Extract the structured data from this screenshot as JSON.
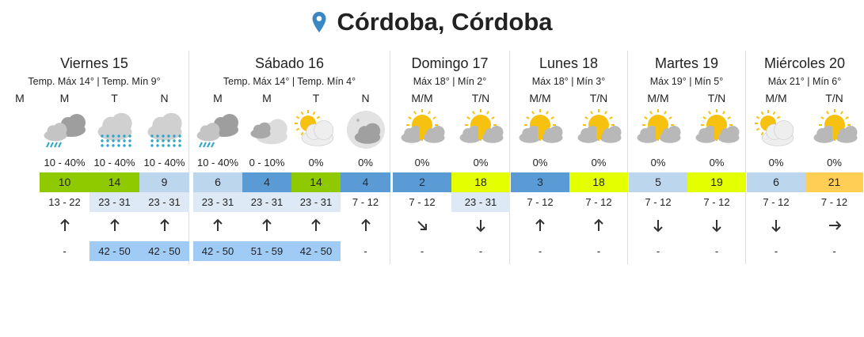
{
  "location": {
    "title": "Córdoba, Córdoba",
    "icon": "map-pin-icon",
    "pin_color": "#3b87c4"
  },
  "colors": {
    "green": "#8fca00",
    "lightblue": "#bcd6ee",
    "blue": "#5b9bd5",
    "lime": "#e4ff00",
    "orange": "#ffcf55",
    "wind_hl": "#dde9f5",
    "gust_hl": "#9fcbf5"
  },
  "days": [
    {
      "name": "Viernes 15",
      "sub": "Temp. Máx 14° | Temp. Mín 9°",
      "cols": [
        {
          "label": "M"
        },
        {
          "label": "M",
          "icon": "storm-cloud-icon",
          "prec": "10 - 40%",
          "temp": "10",
          "tc": "green",
          "wind": "13 - 22",
          "wh": false,
          "dir": "n",
          "gust": "-",
          "gh": false
        },
        {
          "label": "T",
          "icon": "snow-rain-icon",
          "prec": "10 - 40%",
          "temp": "14",
          "tc": "green",
          "wind": "23 - 31",
          "wh": true,
          "dir": "n",
          "gust": "42 - 50",
          "gh": true
        },
        {
          "label": "N",
          "icon": "snow-rain-icon",
          "prec": "10 - 40%",
          "temp": "9",
          "tc": "lightblue",
          "wind": "23 - 31",
          "wh": true,
          "dir": "n",
          "gust": "42 - 50",
          "gh": true
        }
      ]
    },
    {
      "name": "Sábado 16",
      "sub": "Temp. Máx 14° | Temp. Mín 4°",
      "cols": [
        {
          "label": "M",
          "icon": "storm-cloud-icon",
          "prec": "10 - 40%",
          "temp": "6",
          "tc": "lightblue",
          "wind": "23 - 31",
          "wh": true,
          "dir": "n",
          "gust": "42 - 50",
          "gh": true
        },
        {
          "label": "M",
          "icon": "cloudy-icon",
          "prec": "0 - 10%",
          "temp": "4",
          "tc": "blue",
          "wind": "23 - 31",
          "wh": true,
          "dir": "n",
          "gust": "51 - 59",
          "gh": true
        },
        {
          "label": "T",
          "icon": "partly-cloudy-icon",
          "prec": "0%",
          "temp": "14",
          "tc": "green",
          "wind": "23 - 31",
          "wh": true,
          "dir": "n",
          "gust": "42 - 50",
          "gh": true
        },
        {
          "label": "N",
          "icon": "night-cloudy-icon",
          "prec": "0%",
          "temp": "4",
          "tc": "blue",
          "wind": "7 - 12",
          "wh": false,
          "dir": "n",
          "gust": "-",
          "gh": false
        }
      ]
    },
    {
      "name": "Domingo 17",
      "sub": "Máx 18° | Mín 2°",
      "cols": [
        {
          "label": "M/M",
          "icon": "sun-cloud-icon",
          "prec": "0%",
          "temp": "2",
          "tc": "blue",
          "wind": "7 - 12",
          "wh": false,
          "dir": "se",
          "gust": "-",
          "gh": false
        },
        {
          "label": "T/N",
          "icon": "sun-cloud-icon",
          "prec": "0%",
          "temp": "18",
          "tc": "lime",
          "wind": "23 - 31",
          "wh": true,
          "dir": "s",
          "gust": "-",
          "gh": false
        }
      ]
    },
    {
      "name": "Lunes 18",
      "sub": "Máx 18° | Mín 3°",
      "cols": [
        {
          "label": "M/M",
          "icon": "sun-cloud-icon",
          "prec": "0%",
          "temp": "3",
          "tc": "blue",
          "wind": "7 - 12",
          "wh": false,
          "dir": "n",
          "gust": "-",
          "gh": false
        },
        {
          "label": "T/N",
          "icon": "sun-cloud-icon",
          "prec": "0%",
          "temp": "18",
          "tc": "lime",
          "wind": "7 - 12",
          "wh": false,
          "dir": "n",
          "gust": "-",
          "gh": false
        }
      ]
    },
    {
      "name": "Martes 19",
      "sub": "Máx 19° | Mín 5°",
      "cols": [
        {
          "label": "M/M",
          "icon": "sun-cloud-icon",
          "prec": "0%",
          "temp": "5",
          "tc": "lightblue",
          "wind": "7 - 12",
          "wh": false,
          "dir": "s",
          "gust": "-",
          "gh": false
        },
        {
          "label": "T/N",
          "icon": "sun-cloud-icon",
          "prec": "0%",
          "temp": "19",
          "tc": "lime",
          "wind": "7 - 12",
          "wh": false,
          "dir": "s",
          "gust": "-",
          "gh": false
        }
      ]
    },
    {
      "name": "Miércoles 20",
      "sub": "Máx 21° | Mín 6°",
      "cols": [
        {
          "label": "M/M",
          "icon": "partly-cloudy-icon",
          "prec": "0%",
          "temp": "6",
          "tc": "lightblue",
          "wind": "7 - 12",
          "wh": false,
          "dir": "s",
          "gust": "-",
          "gh": false
        },
        {
          "label": "T/N",
          "icon": "sun-cloud-icon",
          "prec": "0%",
          "temp": "21",
          "tc": "orange",
          "wind": "7 - 12",
          "wh": false,
          "dir": "e",
          "gust": "-",
          "gh": false
        }
      ]
    }
  ]
}
